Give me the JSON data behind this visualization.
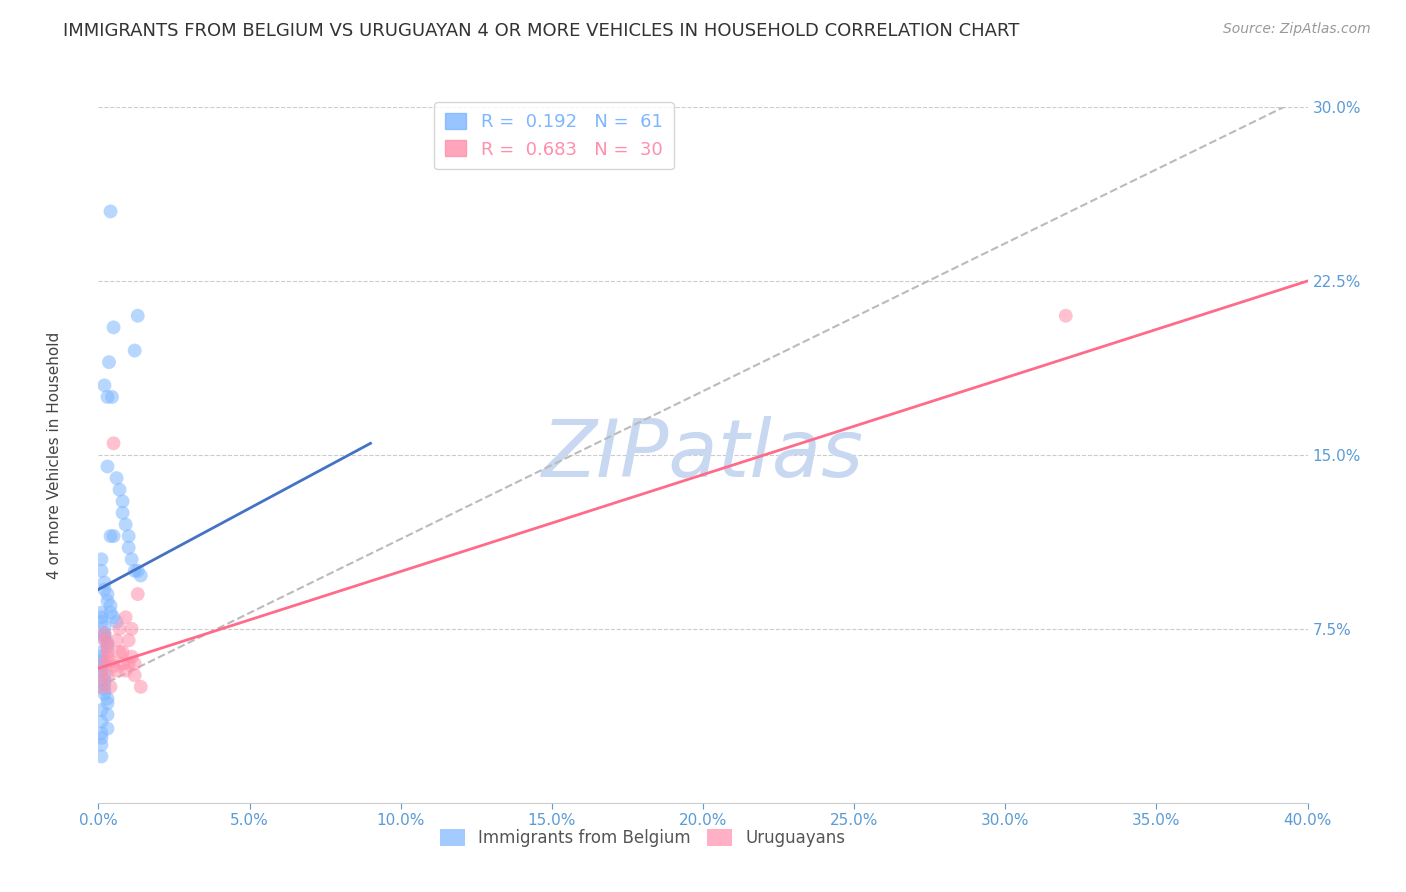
{
  "title": "IMMIGRANTS FROM BELGIUM VS URUGUAYAN 4 OR MORE VEHICLES IN HOUSEHOLD CORRELATION CHART",
  "source": "Source: ZipAtlas.com",
  "ylabel": "4 or more Vehicles in Household",
  "xlim": [
    0.0,
    0.4
  ],
  "ylim": [
    0.0,
    0.3
  ],
  "xticks": [
    0.0,
    0.05,
    0.1,
    0.15,
    0.2,
    0.25,
    0.3,
    0.35,
    0.4
  ],
  "xtick_labels": [
    "0.0%",
    "5.0%",
    "10.0%",
    "15.0%",
    "20.0%",
    "25.0%",
    "30.0%",
    "35.0%",
    "40.0%"
  ],
  "yticks_right": [
    0.075,
    0.15,
    0.225,
    0.3
  ],
  "ytick_labels_right": [
    "7.5%",
    "15.0%",
    "22.5%",
    "30.0%"
  ],
  "legend_r_entries": [
    {
      "label_r": "R = ",
      "r_val": "0.192",
      "label_n": "  N = ",
      "n_val": " 61",
      "color": "#7EB6FF"
    },
    {
      "label_r": "R = ",
      "r_val": "0.683",
      "label_n": "  N = ",
      "n_val": " 30",
      "color": "#FF8FAB"
    }
  ],
  "blue_scatter_x": [
    0.004,
    0.005,
    0.012,
    0.013,
    0.0035,
    0.0045,
    0.002,
    0.003,
    0.003,
    0.006,
    0.007,
    0.008,
    0.008,
    0.009,
    0.01,
    0.01,
    0.011,
    0.012,
    0.001,
    0.001,
    0.002,
    0.002,
    0.003,
    0.003,
    0.004,
    0.004,
    0.005,
    0.006,
    0.001,
    0.001,
    0.001,
    0.002,
    0.002,
    0.002,
    0.003,
    0.003,
    0.001,
    0.001,
    0.001,
    0.001,
    0.001,
    0.002,
    0.002,
    0.002,
    0.002,
    0.002,
    0.003,
    0.003,
    0.013,
    0.014,
    0.001,
    0.001,
    0.001,
    0.001,
    0.001,
    0.001,
    0.003,
    0.003,
    0.002,
    0.004,
    0.005
  ],
  "blue_scatter_y": [
    0.255,
    0.205,
    0.195,
    0.21,
    0.19,
    0.175,
    0.18,
    0.175,
    0.145,
    0.14,
    0.135,
    0.13,
    0.125,
    0.12,
    0.115,
    0.11,
    0.105,
    0.1,
    0.105,
    0.1,
    0.095,
    0.092,
    0.09,
    0.087,
    0.085,
    0.082,
    0.08,
    0.078,
    0.082,
    0.08,
    0.078,
    0.076,
    0.073,
    0.071,
    0.069,
    0.067,
    0.065,
    0.063,
    0.061,
    0.059,
    0.057,
    0.055,
    0.053,
    0.051,
    0.049,
    0.047,
    0.045,
    0.043,
    0.1,
    0.098,
    0.03,
    0.025,
    0.028,
    0.04,
    0.035,
    0.02,
    0.032,
    0.038,
    0.072,
    0.115,
    0.115
  ],
  "pink_scatter_x": [
    0.002,
    0.003,
    0.004,
    0.005,
    0.006,
    0.007,
    0.008,
    0.009,
    0.01,
    0.011,
    0.012,
    0.013,
    0.014,
    0.001,
    0.001,
    0.002,
    0.002,
    0.003,
    0.003,
    0.003,
    0.004,
    0.005,
    0.006,
    0.007,
    0.008,
    0.009,
    0.01,
    0.011,
    0.012,
    0.32
  ],
  "pink_scatter_y": [
    0.06,
    0.055,
    0.05,
    0.155,
    0.07,
    0.065,
    0.065,
    0.08,
    0.06,
    0.075,
    0.055,
    0.09,
    0.05,
    0.055,
    0.05,
    0.073,
    0.07,
    0.068,
    0.065,
    0.063,
    0.061,
    0.059,
    0.057,
    0.075,
    0.06,
    0.057,
    0.07,
    0.063,
    0.06,
    0.21
  ],
  "blue_line_x": [
    0.0,
    0.09
  ],
  "blue_line_y_start": 0.092,
  "blue_line_y_end": 0.155,
  "pink_line_x": [
    0.0,
    0.4
  ],
  "pink_line_y_start": 0.058,
  "pink_line_y_end": 0.225,
  "dashed_line_x": [
    0.0,
    0.4
  ],
  "dashed_line_y_start": 0.05,
  "dashed_line_y_end": 0.305,
  "scatter_size": 100,
  "scatter_alpha": 0.55,
  "title_fontsize": 13,
  "source_fontsize": 10,
  "axis_label_fontsize": 11,
  "tick_fontsize": 11,
  "watermark_text": "ZIPatlas",
  "watermark_color": "#C8D8F0",
  "watermark_fontsize": 58,
  "background_color": "#FFFFFF",
  "grid_color": "#CCCCCC",
  "blue_color": "#7EB6FF",
  "pink_color": "#FF8FAB",
  "blue_line_color": "#4472C4",
  "pink_line_color": "#FF6B8A",
  "dashed_line_color": "#BBBBBB",
  "right_tick_color": "#5B9BD5",
  "bottom_tick_color": "#5B9BD5"
}
